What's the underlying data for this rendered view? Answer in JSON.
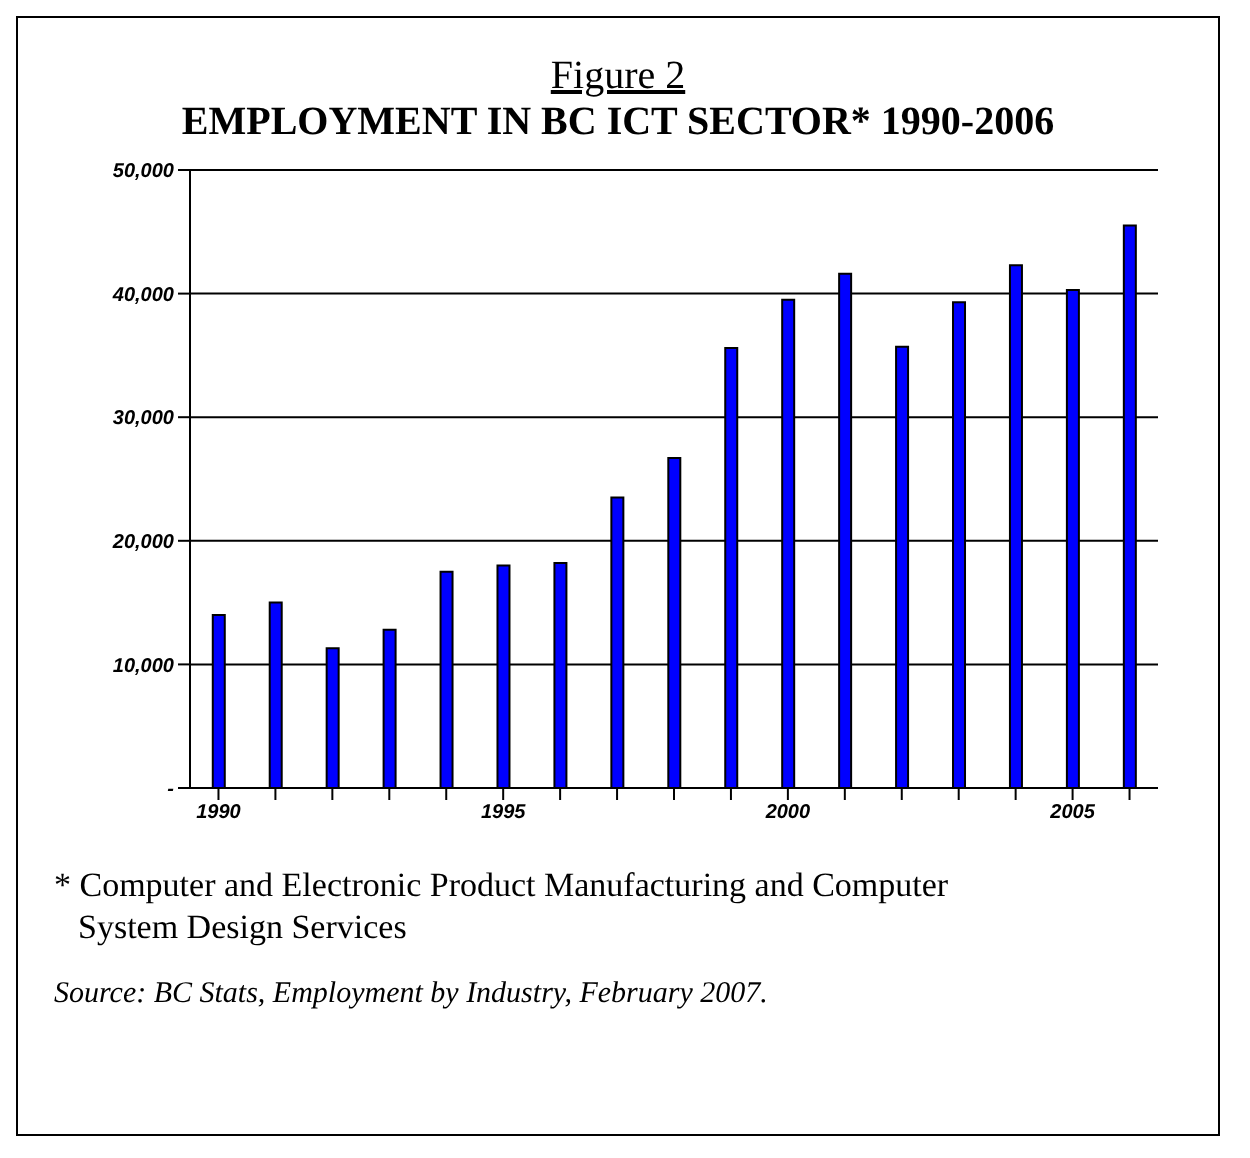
{
  "chart_data": {
    "type": "bar",
    "title": "Figure 2",
    "subtitle": "EMPLOYMENT IN BC ICT SECTOR* 1990-2006",
    "categories": [
      "1990",
      null,
      null,
      null,
      null,
      "1995",
      null,
      null,
      null,
      null,
      "2000",
      null,
      null,
      null,
      null,
      "2005",
      null
    ],
    "values": [
      14000,
      15000,
      11300,
      12800,
      17500,
      18000,
      18200,
      23500,
      26700,
      35600,
      39500,
      41600,
      35700,
      39300,
      42300,
      40300,
      45500
    ],
    "color": "#0000ff",
    "ylim": [
      0,
      50000
    ],
    "yticks": [
      {
        "value": 0,
        "label": "-"
      },
      {
        "value": 10000,
        "label": "10,000"
      },
      {
        "value": 20000,
        "label": "20,000"
      },
      {
        "value": 30000,
        "label": "30,000"
      },
      {
        "value": 40000,
        "label": "40,000"
      },
      {
        "value": 50000,
        "label": "50,000"
      }
    ],
    "grid": "y",
    "annotations": [
      "* Computer and Electronic Product Manufacturing and Computer System Design Services",
      "Source:  BC Stats, Employment by Industry, February 2007."
    ]
  }
}
